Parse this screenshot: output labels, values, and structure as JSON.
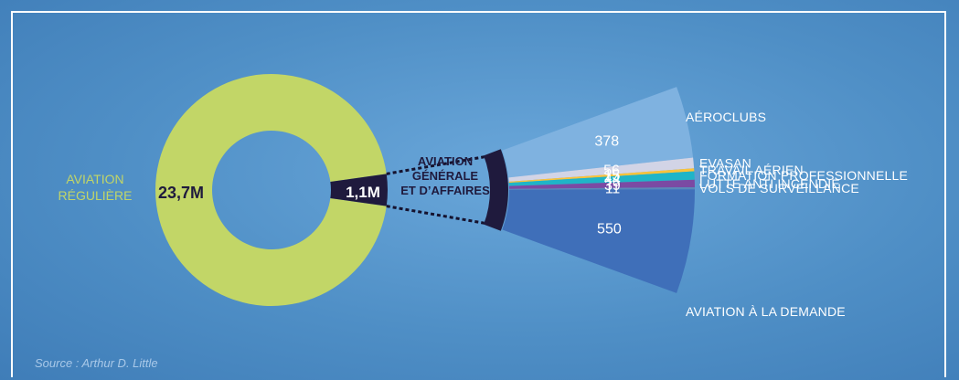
{
  "chart_data": {
    "type": "pie",
    "title": "",
    "outer": {
      "segments": [
        {
          "name_lines": [
            "AVIATION",
            "RÉGULIÈRE"
          ],
          "value_label": "23,7M",
          "value": 23.7,
          "color": "#c2d667",
          "label_color": "#c2d667"
        },
        {
          "name_lines": [
            "AVIATION",
            "GÉNÉRALE",
            "ET D’AFFAIRES"
          ],
          "value_label": "1,1M",
          "value": 1.1,
          "color": "#1f1a3d",
          "label_color": "#1f1a3d"
        }
      ]
    },
    "breakdown": {
      "of": "1,1M",
      "unit_note": "",
      "categories": [
        {
          "name": "AÉROCLUBS",
          "value": 378,
          "value_label": "378",
          "color": "#7fb2e0",
          "label_color": "#ffffff"
        },
        {
          "name": "EVASAN",
          "value": 56,
          "value_label": "56",
          "color": "#d2d4e6",
          "label_color": "#ffffff"
        },
        {
          "name": "TRAVAIL AÉRIEN",
          "value": 15,
          "value_label": "15",
          "color": "#fbc33a",
          "label_color": "#ffffff"
        },
        {
          "name": "FORMATION PROFESSIONNELLE",
          "value": 44,
          "value_label": "44",
          "color": "#1fb5c7",
          "label_color": "#ffffff"
        },
        {
          "name": "LUTTE ANTI INCENDIE",
          "value": 39,
          "value_label": "39",
          "color": "#7b4aa3",
          "label_color": "#ffffff"
        },
        {
          "name": "VOLS DE SURVEILLANCE",
          "value": 11,
          "value_label": "11",
          "color": "#5b88b8",
          "label_color": "#ffffff"
        },
        {
          "name": "AVIATION À LA DEMANDE",
          "value": 550,
          "value_label": "550",
          "color": "#3f6fb9",
          "label_color": "#ffffff"
        }
      ]
    },
    "source": "Source : Arthur D. Little"
  }
}
